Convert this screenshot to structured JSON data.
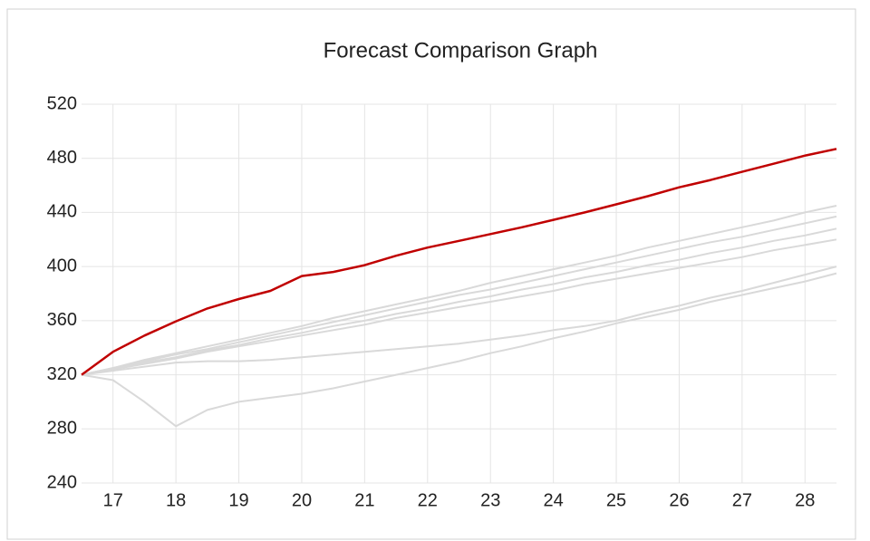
{
  "chart_data": {
    "type": "line",
    "title": "Forecast Comparison Graph",
    "x": [
      16.5,
      17,
      17.5,
      18,
      18.5,
      19,
      19.5,
      20,
      20.5,
      21,
      21.5,
      22,
      22.5,
      23,
      23.5,
      24,
      24.5,
      25,
      25.5,
      26,
      26.5,
      27,
      27.5,
      28,
      28.5
    ],
    "xlim": [
      16.5,
      28.5
    ],
    "xticks": [
      17,
      18,
      19,
      20,
      21,
      22,
      23,
      24,
      25,
      26,
      27,
      28
    ],
    "ylim": [
      240,
      520
    ],
    "yticks": [
      240,
      280,
      320,
      360,
      400,
      440,
      480,
      520
    ],
    "grid": true,
    "series": [
      {
        "color": "#d9d9d9",
        "values": [
          320,
          325,
          331,
          336,
          341,
          346,
          351,
          356,
          362,
          367,
          372,
          377,
          382,
          388,
          393,
          398,
          403,
          408,
          414,
          419,
          424,
          429,
          434,
          440,
          445
        ]
      },
      {
        "color": "#d9d9d9",
        "values": [
          320,
          325,
          330,
          335,
          339,
          344,
          349,
          354,
          359,
          364,
          369,
          374,
          379,
          383,
          388,
          393,
          398,
          403,
          408,
          413,
          418,
          422,
          427,
          432,
          437
        ]
      },
      {
        "color": "#d9d9d9",
        "values": [
          320,
          324,
          329,
          333,
          338,
          342,
          347,
          351,
          356,
          360,
          365,
          369,
          374,
          378,
          383,
          387,
          392,
          396,
          401,
          405,
          410,
          414,
          419,
          423,
          428
        ]
      },
      {
        "color": "#d9d9d9",
        "values": [
          320,
          324,
          328,
          332,
          337,
          341,
          345,
          349,
          353,
          357,
          362,
          366,
          370,
          374,
          378,
          382,
          387,
          391,
          395,
          399,
          403,
          407,
          412,
          416,
          420
        ]
      },
      {
        "color": "#d9d9d9",
        "values": [
          320,
          323,
          326,
          329,
          330,
          330,
          331,
          333,
          335,
          337,
          339,
          341,
          343,
          346,
          349,
          353,
          356,
          360,
          366,
          371,
          377,
          382,
          388,
          394,
          400
        ]
      },
      {
        "color": "#d9d9d9",
        "values": [
          320,
          316,
          300,
          282,
          294,
          300,
          303,
          306,
          310,
          315,
          320,
          325,
          330,
          336,
          341,
          347,
          352,
          358,
          363,
          368,
          374,
          379,
          384,
          389,
          395
        ]
      },
      {
        "color": "#c00000",
        "values": [
          320,
          337,
          349,
          359.5,
          369,
          376,
          382,
          393,
          396,
          401,
          408,
          414,
          419,
          424,
          429,
          434.5,
          440,
          446,
          452,
          458.6,
          464,
          470,
          476,
          482,
          487
        ]
      }
    ]
  }
}
